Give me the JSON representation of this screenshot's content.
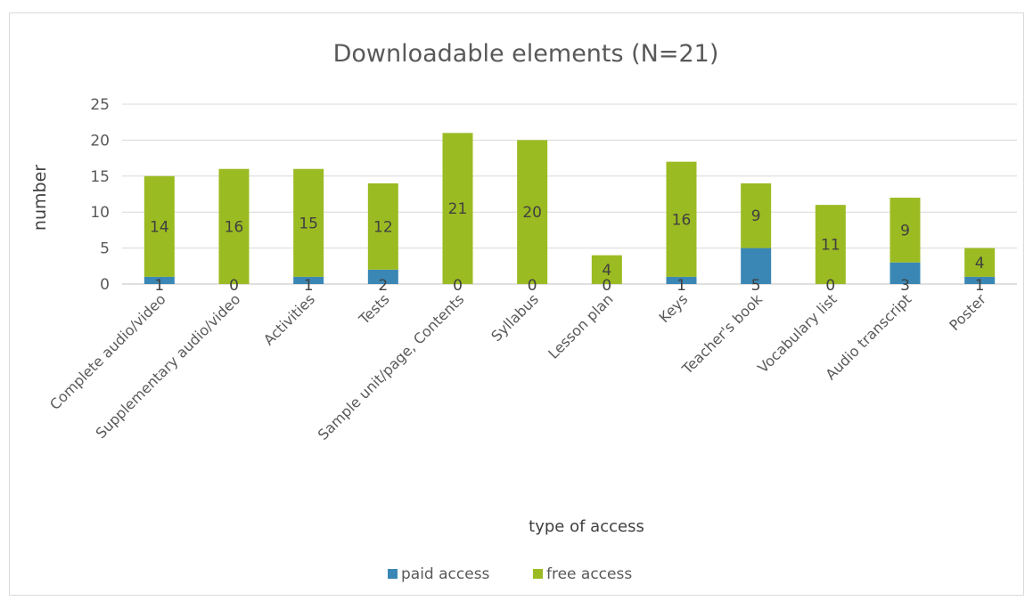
{
  "chart_data": {
    "type": "bar",
    "stacked": true,
    "title": "Downloadable elements (N=21)",
    "xlabel": "type of access",
    "ylabel": "number",
    "ylim": [
      0,
      25
    ],
    "yticks": [
      0,
      5,
      10,
      15,
      20,
      25
    ],
    "grid": true,
    "legend": "bottom",
    "categories": [
      "Complete audio/video",
      "Supplementary audio/video",
      "Activities",
      "Tests",
      "Sample unit/page, Contents",
      "Syllabus",
      "Lesson plan",
      "Keys",
      "Teacher's book",
      "Vocabulary list",
      "Audio transcript",
      "Poster"
    ],
    "series": [
      {
        "name": "paid access",
        "color": "#3a87b5",
        "values": [
          1,
          0,
          1,
          2,
          0,
          0,
          0,
          1,
          5,
          0,
          3,
          1
        ]
      },
      {
        "name": "free access",
        "color": "#9bbb22",
        "values": [
          14,
          16,
          15,
          12,
          21,
          20,
          4,
          16,
          9,
          11,
          9,
          4
        ]
      }
    ]
  }
}
